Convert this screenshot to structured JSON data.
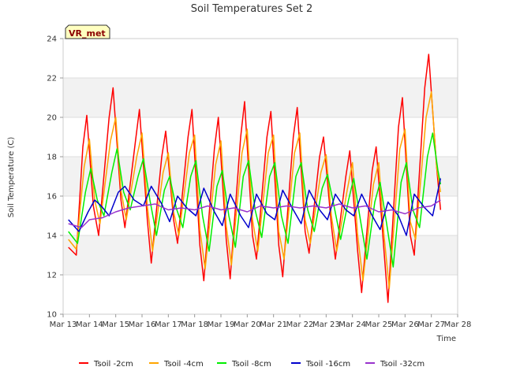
{
  "chart_data": {
    "type": "line",
    "title": "Soil Temperatures Set 2",
    "xlabel": "Time",
    "ylabel": "Soil Temperature (C)",
    "station_label": "VR_met",
    "xlim": [
      13,
      28
    ],
    "ylim": [
      10,
      24
    ],
    "x_ticks": [
      {
        "value": 13,
        "label": "Mar 13"
      },
      {
        "value": 14,
        "label": "Mar 14"
      },
      {
        "value": 15,
        "label": "Mar 15"
      },
      {
        "value": 16,
        "label": "Mar 16"
      },
      {
        "value": 17,
        "label": "Mar 17"
      },
      {
        "value": 18,
        "label": "Mar 18"
      },
      {
        "value": 19,
        "label": "Mar 19"
      },
      {
        "value": 20,
        "label": "Mar 20"
      },
      {
        "value": 21,
        "label": "Mar 21"
      },
      {
        "value": 22,
        "label": "Mar 22"
      },
      {
        "value": 23,
        "label": "Mar 23"
      },
      {
        "value": 24,
        "label": "Mar 24"
      },
      {
        "value": 25,
        "label": "Mar 25"
      },
      {
        "value": 26,
        "label": "Mar 26"
      },
      {
        "value": 27,
        "label": "Mar 27"
      },
      {
        "value": 28,
        "label": "Mar 28"
      }
    ],
    "y_ticks": [
      10,
      12,
      14,
      16,
      18,
      20,
      22,
      24
    ],
    "grid": true,
    "legend_position": "bottom",
    "series": [
      {
        "name": "Tsoil -2cm",
        "color": "#ff0000",
        "x": [
          13.2,
          13.5,
          13.75,
          13.9,
          14.15,
          14.35,
          14.75,
          14.9,
          15.2,
          15.35,
          15.75,
          15.9,
          16.2,
          16.35,
          16.75,
          16.9,
          17.2,
          17.35,
          17.75,
          17.9,
          18.2,
          18.35,
          18.75,
          18.9,
          19.2,
          19.35,
          19.75,
          19.9,
          20.2,
          20.35,
          20.75,
          20.9,
          21.2,
          21.35,
          21.75,
          21.9,
          22.2,
          22.35,
          22.75,
          22.9,
          23.2,
          23.35,
          23.75,
          23.9,
          24.2,
          24.35,
          24.75,
          24.9,
          25.2,
          25.35,
          25.75,
          25.9,
          26.2,
          26.35,
          26.75,
          26.9,
          27.2,
          27.35
        ],
        "y": [
          13.4,
          13.0,
          18.5,
          20.1,
          15.5,
          14.0,
          20.0,
          21.5,
          15.8,
          14.4,
          18.8,
          20.4,
          14.8,
          12.6,
          18.0,
          19.3,
          14.8,
          13.6,
          19.0,
          20.4,
          13.5,
          11.7,
          18.4,
          20.0,
          13.8,
          11.8,
          19.0,
          20.8,
          14.0,
          12.8,
          19.0,
          20.3,
          13.5,
          11.9,
          19.0,
          20.5,
          14.2,
          13.1,
          18.0,
          19.0,
          14.5,
          12.8,
          17.0,
          18.3,
          13.2,
          11.1,
          17.3,
          18.5,
          13.2,
          10.6,
          19.5,
          21.0,
          14.0,
          13.0,
          21.5,
          23.2,
          17.5,
          15.3
        ]
      },
      {
        "name": "Tsoil -4cm",
        "color": "#ffa500",
        "x": [
          13.2,
          13.5,
          13.8,
          14.0,
          14.2,
          14.4,
          14.8,
          15.0,
          15.2,
          15.4,
          15.8,
          16.0,
          16.2,
          16.4,
          16.8,
          17.0,
          17.2,
          17.4,
          17.8,
          18.0,
          18.2,
          18.4,
          18.8,
          19.0,
          19.2,
          19.4,
          19.8,
          20.0,
          20.2,
          20.4,
          20.8,
          21.0,
          21.2,
          21.4,
          21.8,
          22.0,
          22.2,
          22.4,
          22.8,
          23.0,
          23.2,
          23.4,
          23.8,
          24.0,
          24.2,
          24.4,
          24.8,
          25.0,
          25.2,
          25.4,
          25.8,
          26.0,
          26.2,
          26.4,
          26.8,
          27.0,
          27.2,
          27.35
        ],
        "y": [
          13.8,
          13.3,
          17.5,
          18.9,
          15.8,
          14.6,
          18.8,
          20.0,
          16.3,
          14.8,
          18.0,
          19.2,
          15.5,
          13.2,
          17.2,
          18.2,
          15.2,
          14.0,
          18.2,
          19.1,
          14.3,
          12.3,
          17.6,
          18.8,
          14.5,
          12.5,
          18.2,
          19.4,
          14.8,
          13.2,
          18.2,
          19.1,
          14.2,
          12.8,
          18.2,
          19.2,
          14.8,
          13.6,
          17.2,
          18.1,
          15.0,
          13.2,
          16.3,
          17.7,
          14.0,
          11.7,
          16.6,
          17.7,
          14.0,
          11.3,
          18.4,
          19.4,
          14.7,
          13.8,
          20.0,
          21.3,
          17.5,
          16.2
        ]
      },
      {
        "name": "Tsoil -8cm",
        "color": "#00ee00",
        "x": [
          13.2,
          13.55,
          13.85,
          14.05,
          14.3,
          14.55,
          14.85,
          15.05,
          15.3,
          15.55,
          15.85,
          16.05,
          16.3,
          16.55,
          16.85,
          17.05,
          17.3,
          17.55,
          17.85,
          18.05,
          18.3,
          18.55,
          18.85,
          19.05,
          19.3,
          19.55,
          19.85,
          20.05,
          20.3,
          20.55,
          20.85,
          21.05,
          21.3,
          21.55,
          21.85,
          22.05,
          22.3,
          22.55,
          22.85,
          23.05,
          23.3,
          23.55,
          23.85,
          24.05,
          24.3,
          24.55,
          24.85,
          25.05,
          25.3,
          25.55,
          25.85,
          26.05,
          26.3,
          26.55,
          26.85,
          27.05,
          27.25,
          27.35
        ],
        "y": [
          14.2,
          13.6,
          16.2,
          17.4,
          15.8,
          15.0,
          17.2,
          18.4,
          16.2,
          15.3,
          17.0,
          17.9,
          15.8,
          14.0,
          16.3,
          17.0,
          15.4,
          14.4,
          17.0,
          17.8,
          15.0,
          13.2,
          16.5,
          17.3,
          15.0,
          13.4,
          17.0,
          17.8,
          15.3,
          13.9,
          17.0,
          17.7,
          15.0,
          13.6,
          17.0,
          17.7,
          15.3,
          14.2,
          16.4,
          17.1,
          15.5,
          13.8,
          15.8,
          16.9,
          14.8,
          12.8,
          15.7,
          16.7,
          14.6,
          12.4,
          16.7,
          17.7,
          15.3,
          14.4,
          18.0,
          19.2,
          17.3,
          16.6
        ]
      },
      {
        "name": "Tsoil -16cm",
        "color": "#0000cc",
        "x": [
          13.2,
          13.6,
          13.95,
          14.2,
          14.45,
          14.75,
          15.1,
          15.35,
          15.7,
          16.05,
          16.35,
          16.75,
          17.05,
          17.35,
          17.7,
          18.05,
          18.35,
          18.75,
          19.05,
          19.35,
          19.75,
          20.05,
          20.35,
          20.75,
          21.05,
          21.35,
          21.75,
          22.05,
          22.35,
          22.75,
          23.05,
          23.35,
          23.75,
          24.05,
          24.35,
          24.75,
          25.05,
          25.35,
          25.75,
          26.05,
          26.35,
          26.75,
          27.05,
          27.35
        ],
        "y": [
          14.8,
          14.2,
          15.2,
          15.8,
          15.5,
          15.0,
          16.2,
          16.5,
          15.8,
          15.5,
          16.5,
          15.6,
          14.7,
          16.0,
          15.4,
          15.0,
          16.4,
          15.2,
          14.5,
          16.1,
          15.0,
          14.4,
          16.1,
          15.1,
          14.8,
          16.3,
          15.3,
          14.6,
          16.3,
          15.3,
          14.8,
          16.1,
          15.3,
          15.0,
          16.1,
          15.0,
          14.3,
          15.7,
          15.0,
          14.0,
          16.1,
          15.4,
          15.0,
          16.9
        ]
      },
      {
        "name": "Tsoil -32cm",
        "color": "#9933cc",
        "x": [
          13.2,
          13.7,
          14.0,
          14.5,
          15.0,
          15.5,
          16.0,
          16.5,
          17.0,
          17.5,
          18.0,
          18.5,
          19.0,
          19.5,
          20.0,
          20.5,
          21.0,
          21.5,
          22.0,
          22.5,
          23.0,
          23.5,
          24.0,
          24.5,
          25.0,
          25.5,
          26.0,
          26.5,
          27.0,
          27.35
        ],
        "y": [
          14.6,
          14.4,
          14.8,
          14.9,
          15.2,
          15.4,
          15.5,
          15.6,
          15.3,
          15.4,
          15.3,
          15.5,
          15.3,
          15.4,
          15.2,
          15.5,
          15.4,
          15.5,
          15.4,
          15.5,
          15.4,
          15.6,
          15.4,
          15.5,
          15.2,
          15.3,
          15.1,
          15.4,
          15.5,
          15.8
        ]
      }
    ]
  }
}
